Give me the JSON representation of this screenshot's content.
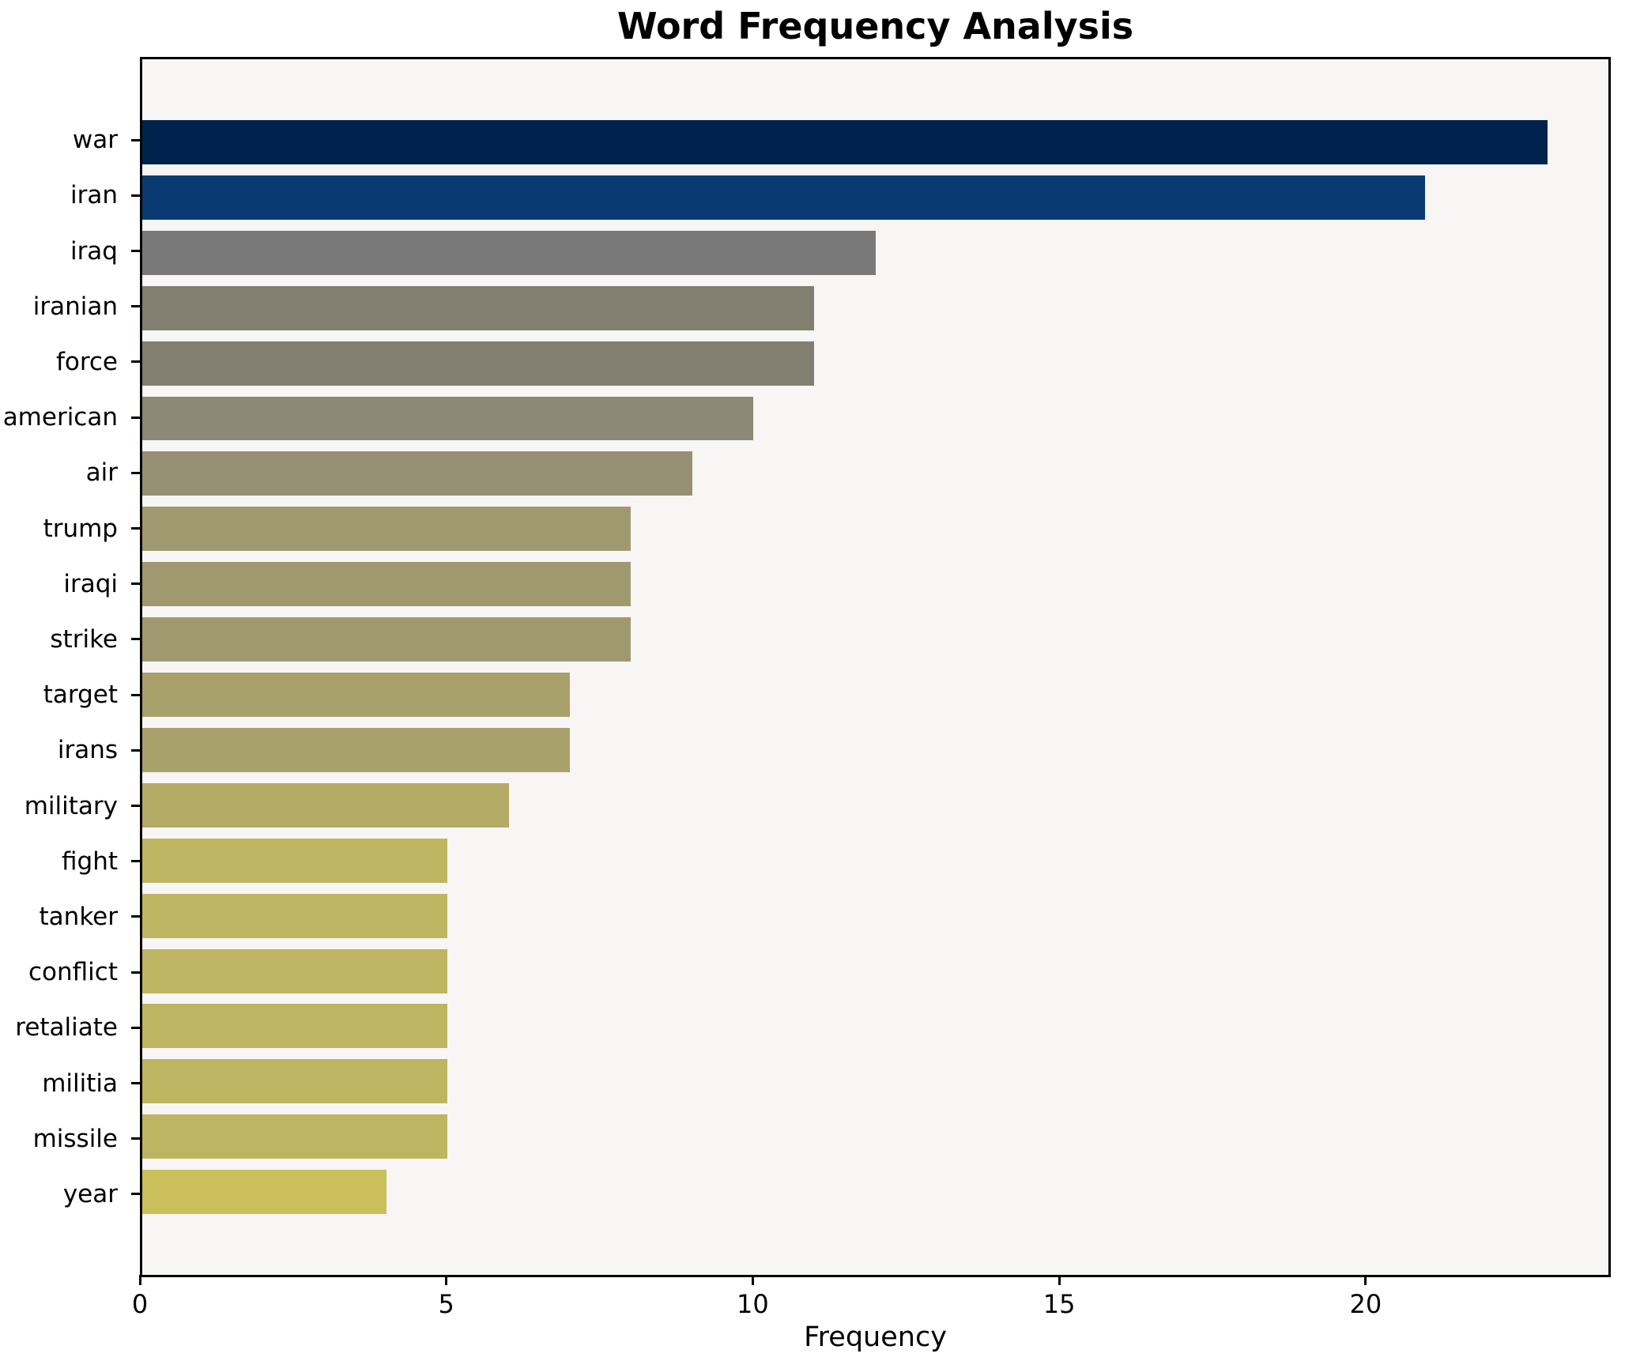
{
  "chart_data": {
    "type": "bar",
    "orientation": "horizontal",
    "title": "Word Frequency Analysis",
    "xlabel": "Frequency",
    "categories": [
      "war",
      "iran",
      "iraq",
      "iranian",
      "force",
      "american",
      "air",
      "trump",
      "iraqi",
      "strike",
      "target",
      "irans",
      "military",
      "fight",
      "tanker",
      "conflict",
      "retaliate",
      "militia",
      "missile",
      "year"
    ],
    "values": [
      23,
      21,
      12,
      11,
      11,
      10,
      9,
      8,
      8,
      8,
      7,
      7,
      6,
      5,
      5,
      5,
      5,
      5,
      5,
      4
    ],
    "bar_colors": [
      "#00234d",
      "#093a71",
      "#797979",
      "#827f71",
      "#827f71",
      "#8c8876",
      "#969174",
      "#a0996f",
      "#a0996f",
      "#a0996f",
      "#a9a16c",
      "#a9a16c",
      "#b3aa66",
      "#bfb461",
      "#bfb461",
      "#bfb461",
      "#bfb461",
      "#bfb461",
      "#bfb461",
      "#cabf5a"
    ],
    "xlim": [
      0,
      24
    ],
    "xticks": [
      0,
      5,
      10,
      15,
      20
    ],
    "grid": false,
    "legend": false,
    "plot_background": "#f7f6f4",
    "figure_background": "#ffffff",
    "spine_color": "#000000",
    "text_color": "#000000"
  }
}
